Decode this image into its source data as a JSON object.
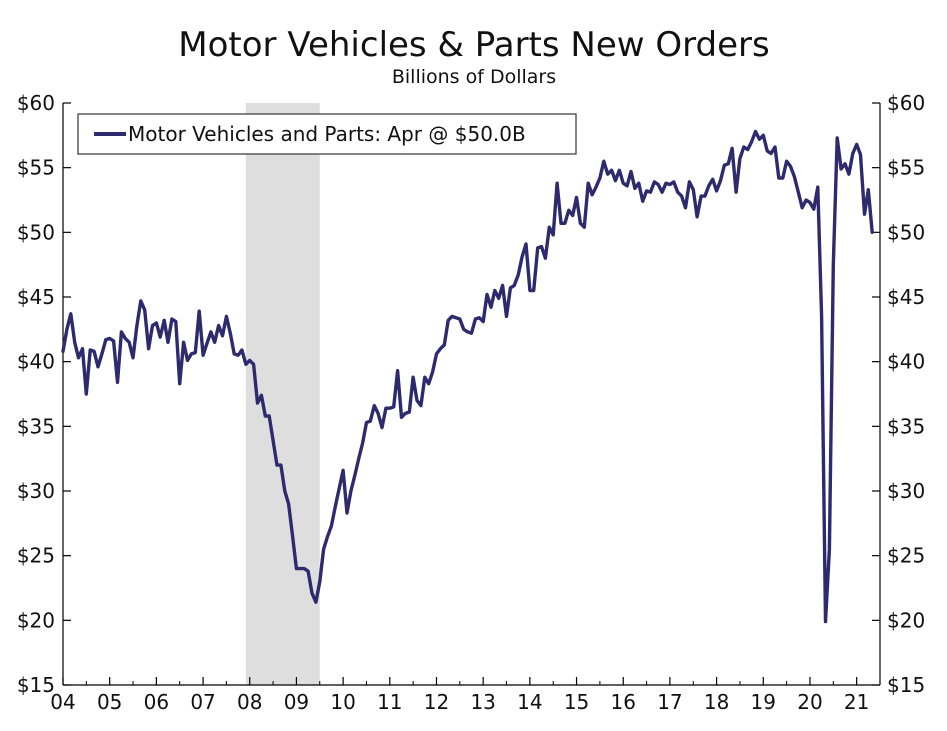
{
  "chart_data": {
    "type": "line",
    "title": "Motor Vehicles & Parts New Orders",
    "subtitle": "Billions of Dollars",
    "xlabel": "",
    "ylabel": "",
    "legend_position": "top-left",
    "grid": false,
    "ylim": [
      15,
      60
    ],
    "y_ticks": [
      15,
      20,
      25,
      30,
      35,
      40,
      45,
      50,
      55,
      60
    ],
    "y_tick_labels": [
      "$15",
      "$20",
      "$25",
      "$30",
      "$35",
      "$40",
      "$45",
      "$50",
      "$55",
      "$60"
    ],
    "x_range": [
      2004.0,
      2021.33
    ],
    "x_ticks": [
      2004,
      2005,
      2006,
      2007,
      2008,
      2009,
      2010,
      2011,
      2012,
      2013,
      2014,
      2015,
      2016,
      2017,
      2018,
      2019,
      2020,
      2021
    ],
    "x_tick_labels": [
      "04",
      "05",
      "06",
      "07",
      "08",
      "09",
      "10",
      "11",
      "12",
      "13",
      "14",
      "15",
      "16",
      "17",
      "18",
      "19",
      "20",
      "21"
    ],
    "recession": {
      "start": 2007.917,
      "end": 2009.5
    },
    "colors": {
      "line": "#2e2a6e",
      "recession": "#dedede",
      "axis": "#000000"
    },
    "series": [
      {
        "name": "Motor Vehicles and Parts: Apr @ $50.0B",
        "points": [
          [
            2004.0,
            40.8
          ],
          [
            2004.083,
            42.5
          ],
          [
            2004.167,
            43.7
          ],
          [
            2004.25,
            41.5
          ],
          [
            2004.333,
            40.3
          ],
          [
            2004.417,
            41.0
          ],
          [
            2004.5,
            37.5
          ],
          [
            2004.583,
            40.9
          ],
          [
            2004.667,
            40.8
          ],
          [
            2004.75,
            39.6
          ],
          [
            2004.833,
            40.6
          ],
          [
            2004.917,
            41.7
          ],
          [
            2005.0,
            41.8
          ],
          [
            2005.083,
            41.6
          ],
          [
            2005.167,
            38.4
          ],
          [
            2005.25,
            42.3
          ],
          [
            2005.333,
            41.8
          ],
          [
            2005.417,
            41.5
          ],
          [
            2005.5,
            40.3
          ],
          [
            2005.583,
            42.8
          ],
          [
            2005.667,
            44.7
          ],
          [
            2005.75,
            44.0
          ],
          [
            2005.833,
            41.0
          ],
          [
            2005.917,
            42.8
          ],
          [
            2006.0,
            43.0
          ],
          [
            2006.083,
            41.9
          ],
          [
            2006.167,
            43.2
          ],
          [
            2006.25,
            41.5
          ],
          [
            2006.333,
            43.3
          ],
          [
            2006.417,
            43.1
          ],
          [
            2006.5,
            38.3
          ],
          [
            2006.583,
            41.5
          ],
          [
            2006.667,
            40.1
          ],
          [
            2006.75,
            40.6
          ],
          [
            2006.833,
            40.7
          ],
          [
            2006.917,
            43.9
          ],
          [
            2007.0,
            40.5
          ],
          [
            2007.083,
            41.4
          ],
          [
            2007.167,
            42.3
          ],
          [
            2007.25,
            41.5
          ],
          [
            2007.333,
            42.8
          ],
          [
            2007.417,
            42.0
          ],
          [
            2007.5,
            43.5
          ],
          [
            2007.583,
            42.2
          ],
          [
            2007.667,
            40.6
          ],
          [
            2007.75,
            40.5
          ],
          [
            2007.833,
            40.9
          ],
          [
            2007.917,
            39.8
          ],
          [
            2008.0,
            40.1
          ],
          [
            2008.083,
            39.8
          ],
          [
            2008.167,
            36.8
          ],
          [
            2008.25,
            37.4
          ],
          [
            2008.333,
            35.8
          ],
          [
            2008.417,
            35.8
          ],
          [
            2008.5,
            33.9
          ],
          [
            2008.583,
            32.0
          ],
          [
            2008.667,
            32.0
          ],
          [
            2008.75,
            30.0
          ],
          [
            2008.833,
            29.0
          ],
          [
            2008.917,
            26.5
          ],
          [
            2009.0,
            24.0
          ],
          [
            2009.083,
            24.0
          ],
          [
            2009.167,
            24.0
          ],
          [
            2009.25,
            23.8
          ],
          [
            2009.333,
            22.1
          ],
          [
            2009.417,
            21.4
          ],
          [
            2009.5,
            23.0
          ],
          [
            2009.583,
            25.5
          ],
          [
            2009.667,
            26.5
          ],
          [
            2009.75,
            27.3
          ],
          [
            2009.833,
            28.8
          ],
          [
            2009.917,
            30.2
          ],
          [
            2010.0,
            31.6
          ],
          [
            2010.083,
            28.3
          ],
          [
            2010.167,
            30.0
          ],
          [
            2010.25,
            31.2
          ],
          [
            2010.333,
            32.5
          ],
          [
            2010.417,
            33.7
          ],
          [
            2010.5,
            35.3
          ],
          [
            2010.583,
            35.4
          ],
          [
            2010.667,
            36.6
          ],
          [
            2010.75,
            36.0
          ],
          [
            2010.833,
            34.9
          ],
          [
            2010.917,
            36.4
          ],
          [
            2011.0,
            36.4
          ],
          [
            2011.083,
            36.5
          ],
          [
            2011.167,
            39.3
          ],
          [
            2011.25,
            35.7
          ],
          [
            2011.333,
            36.0
          ],
          [
            2011.417,
            36.1
          ],
          [
            2011.5,
            38.8
          ],
          [
            2011.583,
            37.0
          ],
          [
            2011.667,
            36.6
          ],
          [
            2011.75,
            38.8
          ],
          [
            2011.833,
            38.3
          ],
          [
            2011.917,
            39.2
          ],
          [
            2012.0,
            40.6
          ],
          [
            2012.083,
            41.0
          ],
          [
            2012.167,
            41.3
          ],
          [
            2012.25,
            43.2
          ],
          [
            2012.333,
            43.5
          ],
          [
            2012.417,
            43.4
          ],
          [
            2012.5,
            43.3
          ],
          [
            2012.583,
            42.5
          ],
          [
            2012.667,
            42.3
          ],
          [
            2012.75,
            42.2
          ],
          [
            2012.833,
            43.3
          ],
          [
            2012.917,
            43.4
          ],
          [
            2013.0,
            43.1
          ],
          [
            2013.083,
            45.2
          ],
          [
            2013.167,
            44.2
          ],
          [
            2013.25,
            45.5
          ],
          [
            2013.333,
            44.9
          ],
          [
            2013.417,
            45.9
          ],
          [
            2013.5,
            43.5
          ],
          [
            2013.583,
            45.7
          ],
          [
            2013.667,
            45.9
          ],
          [
            2013.75,
            46.7
          ],
          [
            2013.833,
            48.1
          ],
          [
            2013.917,
            49.1
          ],
          [
            2014.0,
            45.5
          ],
          [
            2014.083,
            45.5
          ],
          [
            2014.167,
            48.8
          ],
          [
            2014.25,
            48.9
          ],
          [
            2014.333,
            48.0
          ],
          [
            2014.417,
            50.4
          ],
          [
            2014.5,
            49.8
          ],
          [
            2014.583,
            53.8
          ],
          [
            2014.667,
            50.7
          ],
          [
            2014.75,
            50.7
          ],
          [
            2014.833,
            51.7
          ],
          [
            2014.917,
            51.3
          ],
          [
            2015.0,
            52.7
          ],
          [
            2015.083,
            50.7
          ],
          [
            2015.167,
            50.4
          ],
          [
            2015.25,
            53.8
          ],
          [
            2015.333,
            52.9
          ],
          [
            2015.417,
            53.5
          ],
          [
            2015.5,
            54.2
          ],
          [
            2015.583,
            55.5
          ],
          [
            2015.667,
            54.5
          ],
          [
            2015.75,
            54.8
          ],
          [
            2015.833,
            54.0
          ],
          [
            2015.917,
            54.8
          ],
          [
            2016.0,
            53.8
          ],
          [
            2016.083,
            53.6
          ],
          [
            2016.167,
            54.7
          ],
          [
            2016.25,
            53.4
          ],
          [
            2016.333,
            53.8
          ],
          [
            2016.417,
            52.4
          ],
          [
            2016.5,
            53.2
          ],
          [
            2016.583,
            53.1
          ],
          [
            2016.667,
            53.9
          ],
          [
            2016.75,
            53.7
          ],
          [
            2016.833,
            53.1
          ],
          [
            2016.917,
            53.8
          ],
          [
            2017.0,
            53.7
          ],
          [
            2017.083,
            53.9
          ],
          [
            2017.167,
            53.1
          ],
          [
            2017.25,
            52.8
          ],
          [
            2017.333,
            51.9
          ],
          [
            2017.417,
            53.9
          ],
          [
            2017.5,
            53.3
          ],
          [
            2017.583,
            51.2
          ],
          [
            2017.667,
            52.8
          ],
          [
            2017.75,
            52.8
          ],
          [
            2017.833,
            53.6
          ],
          [
            2017.917,
            54.1
          ],
          [
            2018.0,
            53.2
          ],
          [
            2018.083,
            54.0
          ],
          [
            2018.167,
            55.2
          ],
          [
            2018.25,
            55.3
          ],
          [
            2018.333,
            56.5
          ],
          [
            2018.417,
            53.1
          ],
          [
            2018.5,
            55.7
          ],
          [
            2018.583,
            56.6
          ],
          [
            2018.667,
            56.4
          ],
          [
            2018.75,
            57.0
          ],
          [
            2018.833,
            57.8
          ],
          [
            2018.917,
            57.2
          ],
          [
            2019.0,
            57.5
          ],
          [
            2019.083,
            56.3
          ],
          [
            2019.167,
            56.1
          ],
          [
            2019.25,
            56.6
          ],
          [
            2019.333,
            54.2
          ],
          [
            2019.417,
            54.2
          ],
          [
            2019.5,
            55.5
          ],
          [
            2019.583,
            55.1
          ],
          [
            2019.667,
            54.3
          ],
          [
            2019.75,
            53.1
          ],
          [
            2019.833,
            51.9
          ],
          [
            2019.917,
            52.5
          ],
          [
            2020.0,
            52.3
          ],
          [
            2020.083,
            51.8
          ],
          [
            2020.167,
            53.5
          ],
          [
            2020.25,
            43.5
          ],
          [
            2020.333,
            19.9
          ],
          [
            2020.417,
            25.5
          ],
          [
            2020.5,
            47.5
          ],
          [
            2020.583,
            57.3
          ],
          [
            2020.667,
            54.9
          ],
          [
            2020.75,
            55.3
          ],
          [
            2020.833,
            54.5
          ],
          [
            2020.917,
            56.1
          ],
          [
            2021.0,
            56.8
          ],
          [
            2021.083,
            56.0
          ],
          [
            2021.167,
            51.4
          ],
          [
            2021.25,
            53.3
          ],
          [
            2021.333,
            50.0
          ]
        ]
      }
    ]
  }
}
